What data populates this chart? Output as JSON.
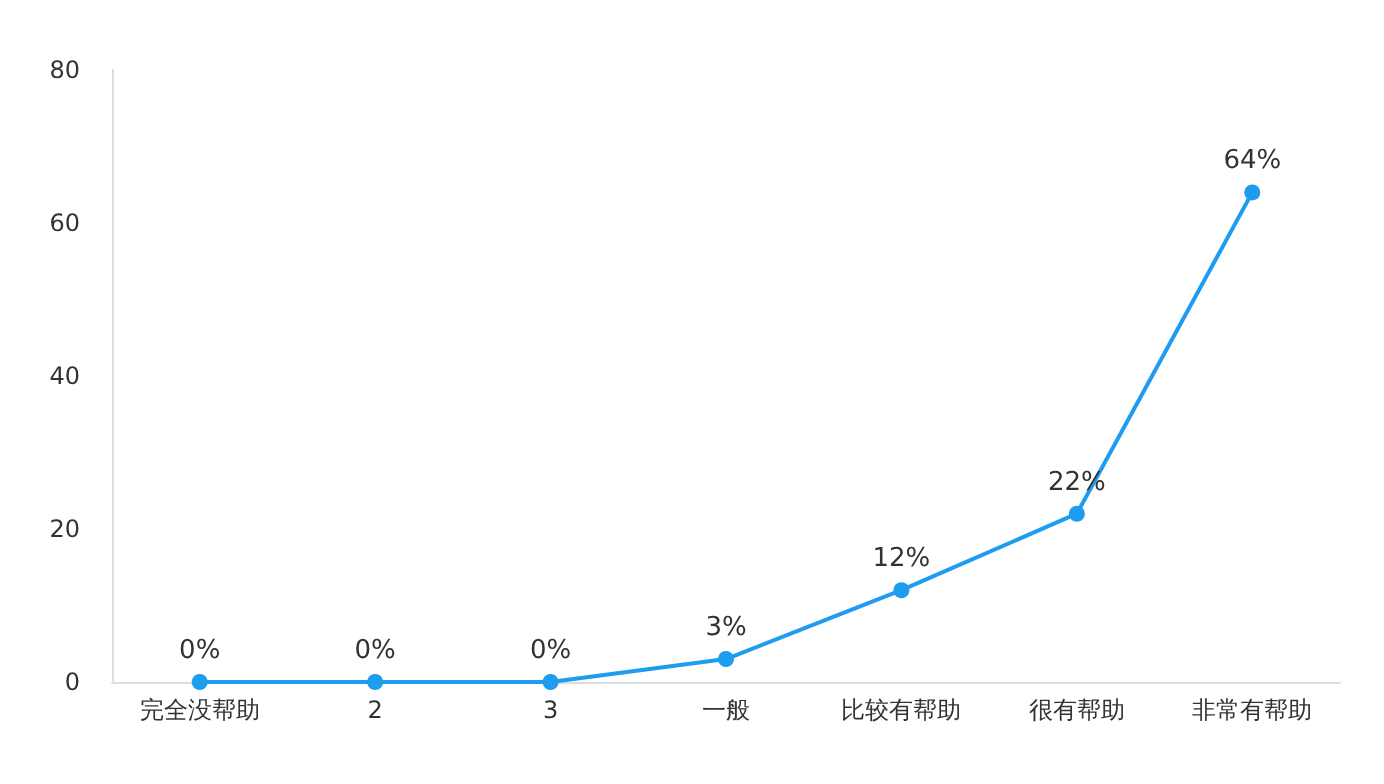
{
  "chart_data": {
    "type": "line",
    "categories": [
      "完全没帮助",
      "2",
      "3",
      "一般",
      "比较有帮助",
      "很有帮助",
      "非常有帮助"
    ],
    "values": [
      0,
      0,
      0,
      3,
      12,
      22,
      64
    ],
    "value_labels": [
      "0%",
      "0%",
      "0%",
      "3%",
      "12%",
      "22%",
      "64%"
    ],
    "color": "#1e9cf0",
    "ylim": [
      0,
      80
    ],
    "yticks": [
      0,
      20,
      40,
      60,
      80
    ],
    "grid": false,
    "marker": "circle",
    "line_style": "solid"
  }
}
